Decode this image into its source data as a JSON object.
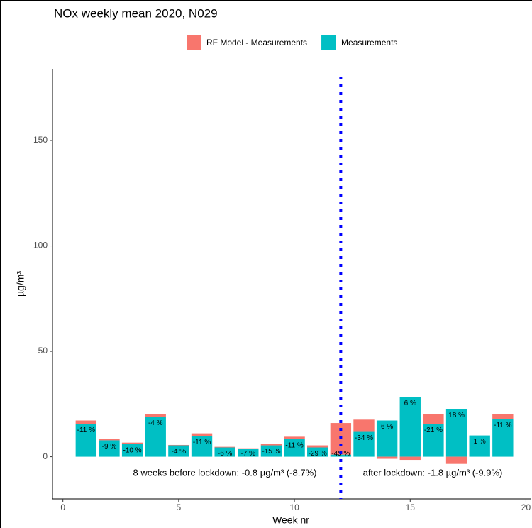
{
  "chart_data": {
    "type": "bar",
    "title": "NOx  weekly mean 2020, N029",
    "x_label": "Week nr",
    "y_label": "µg/m³",
    "categories": [
      1,
      2,
      3,
      4,
      5,
      6,
      7,
      8,
      9,
      10,
      11,
      12,
      13,
      14,
      15,
      16,
      17,
      18,
      19
    ],
    "series": [
      {
        "name": "RF Model - Measurements",
        "color": "#f8766d",
        "values": [
          1.7,
          0.6,
          0.7,
          1.2,
          0.2,
          1.3,
          0.3,
          0.3,
          0.8,
          1.1,
          1,
          15,
          5.8,
          -1,
          -1.5,
          4.8,
          -3.4,
          0,
          2.4
        ]
      },
      {
        "name": "Measurements",
        "color": "#00bfc4",
        "values": [
          15.5,
          7.8,
          6,
          19,
          5.4,
          9.8,
          4.4,
          3.7,
          5.4,
          8.4,
          4.4,
          1,
          11.8,
          17.2,
          28.4,
          15.5,
          22.6,
          10.1,
          17.9
        ]
      }
    ],
    "labels": [
      "-11 %",
      "-9 %",
      "-10 %",
      "-4 %",
      "-4 %",
      "-11 %",
      "-6 %",
      "-7 %",
      "-15 %",
      "-11 %",
      "-29 %",
      "-45 %",
      "-34 %",
      "6 %",
      "6 %",
      "-21 %",
      "18 %",
      "1 %",
      "-11 %"
    ],
    "vline_x": 12,
    "vline_color": "#0000ff",
    "annotations": [
      "8 weeks before lockdown: -0.8 µg/m³ (-8.7%)",
      "after lockdown: -1.8 µg/m³ (-9.9%)"
    ],
    "xlim": [
      -0.45,
      20.2
    ],
    "xticks": [
      0,
      5,
      10,
      15,
      20
    ],
    "ylim": [
      -20,
      184
    ],
    "yticks": [
      0,
      50,
      100,
      150
    ],
    "grid": false,
    "legend_position": "top"
  }
}
